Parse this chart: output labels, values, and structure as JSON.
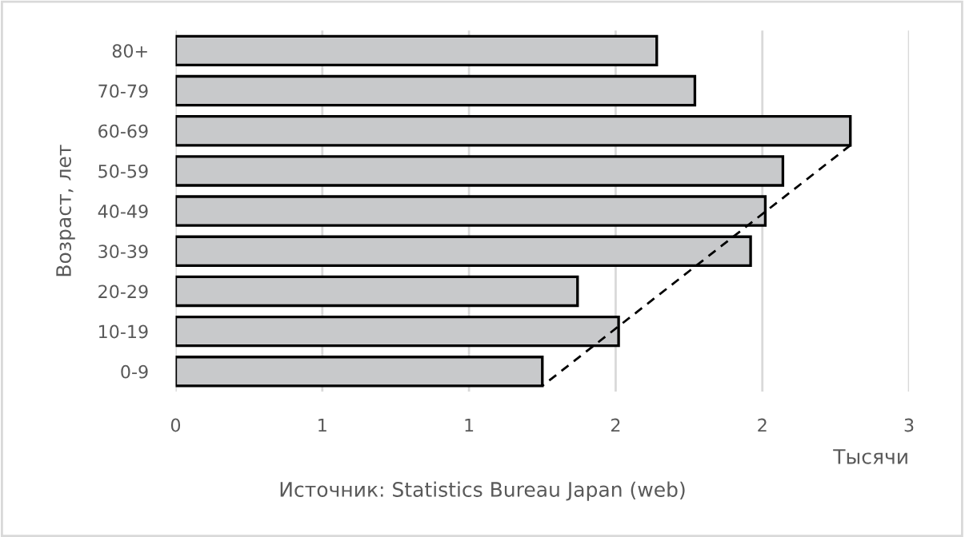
{
  "chart_data": {
    "type": "bar",
    "orientation": "horizontal",
    "categories": [
      "80+",
      "70-79",
      "60-69",
      "50-59",
      "40-49",
      "30-39",
      "20-29",
      "10-19",
      "0-9"
    ],
    "series": [
      {
        "color": "#c8c9cb",
        "values": [
          1.64,
          1.77,
          2.3,
          2.07,
          2.01,
          1.96,
          1.37,
          1.51,
          1.25
        ]
      },
      {
        "type": "line",
        "line_style": "dashed",
        "color": "#000000",
        "values": [
          null,
          null,
          2.3,
          null,
          null,
          null,
          null,
          null,
          1.25
        ]
      }
    ],
    "xlim": [
      0,
      2.5
    ],
    "xticks": [
      0,
      {
        "value": 0.5,
        "label": "1"
      },
      1,
      {
        "value": 1.5,
        "label": "2"
      },
      2,
      {
        "value": 2.5,
        "label": "3"
      }
    ],
    "xlabel": "Тысячи",
    "ylabel": "Возраст, лет",
    "annotations": [
      "Источник: Statistics Bureau Japan (web)"
    ],
    "grid": "x"
  }
}
